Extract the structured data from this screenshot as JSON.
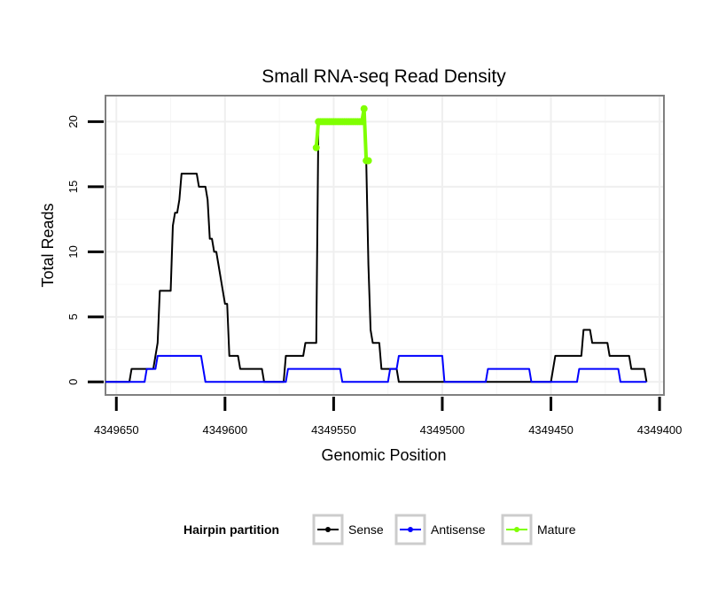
{
  "chart_data": {
    "type": "line",
    "title": "Small RNA-seq Read Density",
    "xlabel": "Genomic Position",
    "ylabel": "Total Reads",
    "x_reversed": true,
    "xlim": [
      4349655,
      4349398
    ],
    "ylim": [
      -1,
      22
    ],
    "x_ticks": [
      4349650,
      4349600,
      4349550,
      4349500,
      4349450,
      4349400
    ],
    "x_tick_labels": [
      "4349650",
      "4349600",
      "4349550",
      "4349500",
      "4349450",
      "4349400"
    ],
    "y_ticks": [
      0,
      5,
      10,
      15,
      20
    ],
    "y_tick_labels": [
      "0",
      "5",
      "10",
      "15",
      "20"
    ],
    "legend": {
      "title": "Hairpin partition",
      "position": "bottom",
      "entries": [
        {
          "label": "Sense",
          "color": "#000000"
        },
        {
          "label": "Antisense",
          "color": "#0000ff"
        },
        {
          "label": "Mature",
          "color": "#7fff00"
        }
      ]
    },
    "series": [
      {
        "name": "Sense",
        "color": "#000000",
        "points": [
          [
            4349655,
            0
          ],
          [
            4349644,
            0
          ],
          [
            4349643,
            1
          ],
          [
            4349633,
            1
          ],
          [
            4349632,
            2
          ],
          [
            4349631,
            3
          ],
          [
            4349630,
            7
          ],
          [
            4349625,
            7
          ],
          [
            4349624,
            12
          ],
          [
            4349623,
            13
          ],
          [
            4349622,
            13
          ],
          [
            4349621,
            14
          ],
          [
            4349620,
            16
          ],
          [
            4349613,
            16
          ],
          [
            4349612,
            15
          ],
          [
            4349609,
            15
          ],
          [
            4349608,
            14
          ],
          [
            4349607,
            11
          ],
          [
            4349606,
            11
          ],
          [
            4349605,
            10
          ],
          [
            4349604,
            10
          ],
          [
            4349600,
            6
          ],
          [
            4349599,
            6
          ],
          [
            4349598,
            2
          ],
          [
            4349594,
            2
          ],
          [
            4349593,
            1
          ],
          [
            4349583,
            1
          ],
          [
            4349582,
            0
          ],
          [
            4349573,
            0
          ],
          [
            4349572,
            2
          ],
          [
            4349564,
            2
          ],
          [
            4349563,
            3
          ],
          [
            4349558,
            3
          ],
          [
            4349557,
            20
          ],
          [
            4349537,
            20
          ],
          [
            4349536,
            21
          ],
          [
            4349535,
            17
          ],
          [
            4349534,
            9
          ],
          [
            4349533,
            4
          ],
          [
            4349532,
            3
          ],
          [
            4349529,
            3
          ],
          [
            4349528,
            1
          ],
          [
            4349521,
            1
          ],
          [
            4349520,
            0
          ],
          [
            4349450,
            0
          ],
          [
            4349449,
            1
          ],
          [
            4349448,
            2
          ],
          [
            4349436,
            2
          ],
          [
            4349435,
            4
          ],
          [
            4349432,
            4
          ],
          [
            4349431,
            3
          ],
          [
            4349424,
            3
          ],
          [
            4349423,
            2
          ],
          [
            4349414,
            2
          ],
          [
            4349413,
            1
          ],
          [
            4349407,
            1
          ],
          [
            4349406,
            0
          ]
        ]
      },
      {
        "name": "Antisense",
        "color": "#0000ff",
        "points": [
          [
            4349655,
            0
          ],
          [
            4349637,
            0
          ],
          [
            4349636,
            1
          ],
          [
            4349632,
            1
          ],
          [
            4349631,
            2
          ],
          [
            4349611,
            2
          ],
          [
            4349610,
            1
          ],
          [
            4349609,
            0
          ],
          [
            4349573,
            0
          ],
          [
            4349572,
            0
          ],
          [
            4349571,
            1
          ],
          [
            4349547,
            1
          ],
          [
            4349546,
            0
          ],
          [
            4349525,
            0
          ],
          [
            4349524,
            1
          ],
          [
            4349521,
            1
          ],
          [
            4349520,
            2
          ],
          [
            4349500,
            2
          ],
          [
            4349499,
            0
          ],
          [
            4349480,
            0
          ],
          [
            4349479,
            1
          ],
          [
            4349460,
            1
          ],
          [
            4349459,
            0
          ],
          [
            4349438,
            0
          ],
          [
            4349437,
            1
          ],
          [
            4349419,
            1
          ],
          [
            4349418,
            0
          ],
          [
            4349406,
            0
          ]
        ]
      },
      {
        "name": "Mature",
        "color": "#7fff00",
        "points": [
          [
            4349558,
            18
          ],
          [
            4349557,
            20
          ],
          [
            4349556,
            20
          ],
          [
            4349555,
            20
          ],
          [
            4349554,
            20
          ],
          [
            4349553,
            20
          ],
          [
            4349552,
            20
          ],
          [
            4349551,
            20
          ],
          [
            4349550,
            20
          ],
          [
            4349549,
            20
          ],
          [
            4349548,
            20
          ],
          [
            4349547,
            20
          ],
          [
            4349546,
            20
          ],
          [
            4349545,
            20
          ],
          [
            4349544,
            20
          ],
          [
            4349543,
            20
          ],
          [
            4349542,
            20
          ],
          [
            4349541,
            20
          ],
          [
            4349540,
            20
          ],
          [
            4349539,
            20
          ],
          [
            4349538,
            20
          ],
          [
            4349537,
            20
          ],
          [
            4349536,
            21
          ],
          [
            4349535,
            17
          ],
          [
            4349534,
            17
          ]
        ]
      }
    ]
  }
}
